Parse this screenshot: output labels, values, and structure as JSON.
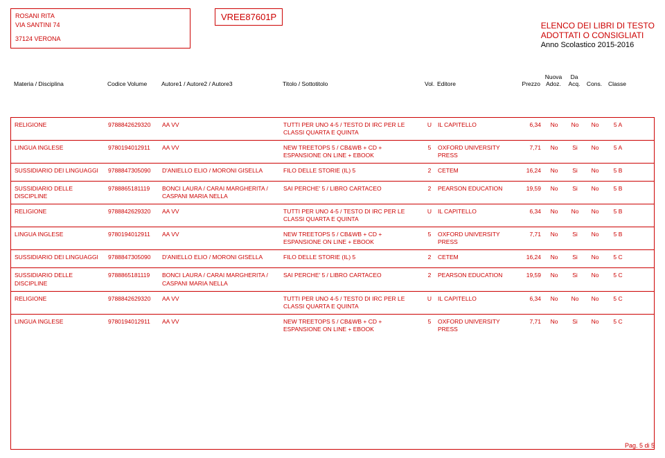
{
  "header": {
    "school_name": "ROSANI RITA",
    "school_addr": "VIA SANTINI 74",
    "school_city": "37124  VERONA",
    "code": "VREE87601P",
    "title_line1": "ELENCO DEI LIBRI DI TESTO",
    "title_line2": "ADOTTATI O CONSIGLIATI",
    "year": "Anno Scolastico 2015-2016"
  },
  "columns": {
    "materia": "Materia / Disciplina",
    "codice": "Codice Volume",
    "autore": "Autore1 / Autore2 / Autore3",
    "titolo": "Titolo / Sottotitolo",
    "vol": "Vol.",
    "editore": "Editore",
    "prezzo": "Prezzo",
    "nuova": "Nuova Adoz.",
    "acq": "Da Acq.",
    "cons": "Cons.",
    "classe": "Classe"
  },
  "rows": [
    {
      "mat": "RELIGIONE",
      "cod": "9788842629320",
      "aut": "AA VV",
      "tit": "TUTTI PER UNO 4-5 / TESTO DI IRC PER LE CLASSI QUARTA E QUINTA",
      "vol": "U",
      "edi": "IL CAPITELLO",
      "prz": "6,34",
      "nva": "No",
      "acq": "No",
      "con": "No",
      "cls": "5 A"
    },
    {
      "mat": "LINGUA INGLESE",
      "cod": "9780194012911",
      "aut": "AA VV",
      "tit": "NEW TREETOPS 5 / CB&WB + CD + ESPANSIONE ON LINE + EBOOK",
      "vol": "5",
      "edi": "OXFORD UNIVERSITY PRESS",
      "prz": "7,71",
      "nva": "No",
      "acq": "Si",
      "con": "No",
      "cls": "5 A"
    },
    {
      "mat": "SUSSIDIARIO DEI LINGUAGGI",
      "cod": "9788847305090",
      "aut": "D'ANIELLO ELIO / MORONI GISELLA",
      "tit": "FILO DELLE STORIE (IL) 5",
      "vol": "2",
      "edi": "CETEM",
      "prz": "16,24",
      "nva": "No",
      "acq": "Si",
      "con": "No",
      "cls": "5 B"
    },
    {
      "mat": "SUSSIDIARIO DELLE DISCIPLINE",
      "cod": "9788865181119",
      "aut": "BONCI LAURA / CARAI MARGHERITA / CASPANI MARIA NELLA",
      "tit": "SAI PERCHE'   5 / LIBRO CARTACEO",
      "vol": "2",
      "edi": "PEARSON EDUCATION",
      "prz": "19,59",
      "nva": "No",
      "acq": "Si",
      "con": "No",
      "cls": "5 B"
    },
    {
      "mat": "RELIGIONE",
      "cod": "9788842629320",
      "aut": "AA VV",
      "tit": "TUTTI PER UNO 4-5 / TESTO DI IRC PER LE CLASSI QUARTA E QUINTA",
      "vol": "U",
      "edi": "IL CAPITELLO",
      "prz": "6,34",
      "nva": "No",
      "acq": "No",
      "con": "No",
      "cls": "5 B"
    },
    {
      "mat": "LINGUA INGLESE",
      "cod": "9780194012911",
      "aut": "AA VV",
      "tit": "NEW TREETOPS 5 / CB&WB + CD + ESPANSIONE ON LINE + EBOOK",
      "vol": "5",
      "edi": "OXFORD UNIVERSITY PRESS",
      "prz": "7,71",
      "nva": "No",
      "acq": "Si",
      "con": "No",
      "cls": "5 B"
    },
    {
      "mat": "SUSSIDIARIO DEI LINGUAGGI",
      "cod": "9788847305090",
      "aut": "D'ANIELLO ELIO / MORONI GISELLA",
      "tit": "FILO DELLE STORIE (IL) 5",
      "vol": "2",
      "edi": "CETEM",
      "prz": "16,24",
      "nva": "No",
      "acq": "Si",
      "con": "No",
      "cls": "5 C"
    },
    {
      "mat": "SUSSIDIARIO DELLE DISCIPLINE",
      "cod": "9788865181119",
      "aut": "BONCI LAURA / CARAI MARGHERITA / CASPANI MARIA NELLA",
      "tit": "SAI PERCHE'   5 / LIBRO CARTACEO",
      "vol": "2",
      "edi": "PEARSON EDUCATION",
      "prz": "19,59",
      "nva": "No",
      "acq": "Si",
      "con": "No",
      "cls": "5 C"
    },
    {
      "mat": "RELIGIONE",
      "cod": "9788842629320",
      "aut": "AA VV",
      "tit": "TUTTI PER UNO 4-5 / TESTO DI IRC PER LE CLASSI QUARTA E QUINTA",
      "vol": "U",
      "edi": "IL CAPITELLO",
      "prz": "6,34",
      "nva": "No",
      "acq": "No",
      "con": "No",
      "cls": "5 C"
    },
    {
      "mat": "LINGUA INGLESE",
      "cod": "9780194012911",
      "aut": "AA VV",
      "tit": "NEW TREETOPS 5 / CB&WB + CD + ESPANSIONE ON LINE + EBOOK",
      "vol": "5",
      "edi": "OXFORD UNIVERSITY PRESS",
      "prz": "7,71",
      "nva": "No",
      "acq": "Si",
      "con": "No",
      "cls": "5 C"
    }
  ],
  "footer": "Pag. 5 di 5",
  "style": {
    "accent": "#c00",
    "text": "#000",
    "bg": "#ffffff",
    "font_size_body": 9,
    "font_size_code": 13,
    "font_size_title": 12
  }
}
